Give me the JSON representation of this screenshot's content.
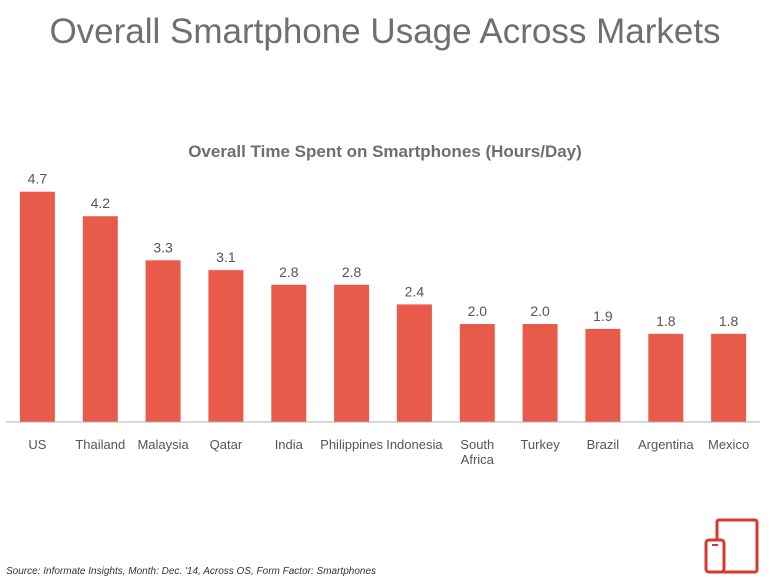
{
  "page": {
    "title": "Overall Smartphone Usage Across Markets",
    "source": "Source: Informate Insights, Month: Dec. '14, Across OS, Form Factor: Smartphones"
  },
  "colors": {
    "bar": "#e85b4b",
    "axis": "#b0b0b0",
    "label": "#555555",
    "icon": "#d9382c"
  },
  "icons": {
    "logo": "tablet-phone-icon"
  },
  "chart_data": {
    "type": "bar",
    "title": "Overall Time Spent on Smartphones (Hours/Day)",
    "xlabel": "",
    "ylabel": "",
    "categories": [
      "US",
      "Thailand",
      "Malaysia",
      "Qatar",
      "India",
      "Philippines",
      "Indonesia",
      "South Africa",
      "Turkey",
      "Brazil",
      "Argentina",
      "Mexico"
    ],
    "values": [
      4.7,
      4.2,
      3.3,
      3.1,
      2.8,
      2.8,
      2.4,
      2.0,
      2.0,
      1.9,
      1.8,
      1.8
    ],
    "value_labels": [
      "4.7",
      "4.2",
      "3.3",
      "3.1",
      "2.8",
      "2.8",
      "2.4",
      "2.0",
      "2.0",
      "1.9",
      "1.8",
      "1.8"
    ],
    "ylim": [
      0,
      5
    ],
    "grid": false,
    "legend": "none"
  }
}
